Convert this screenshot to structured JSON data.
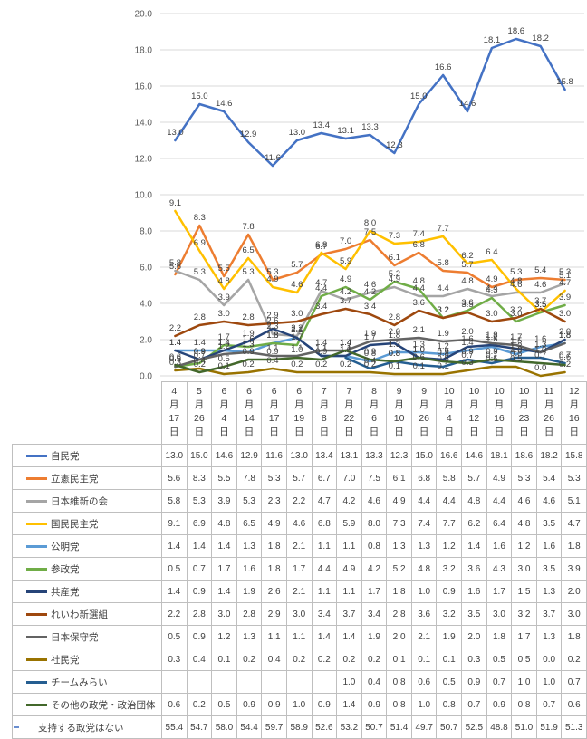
{
  "colors": {
    "gridline": "#d9d9d9",
    "table_border": "#bfbfbf",
    "axis_text": "#595959",
    "data_label_text": "#404040",
    "table_text": "#404040",
    "no_party_tick": "#698ed0"
  },
  "chart_data": {
    "type": "line",
    "title": "",
    "xlabel": "",
    "ylabel": "",
    "grid": true,
    "data_labels": true,
    "legend_position": "data-table-left-keys",
    "y_axis": {
      "min": 0.0,
      "max": 20.0,
      "step": 2.0,
      "tick_labels": [
        "20.0",
        "18.0",
        "16.0",
        "14.0",
        "12.0",
        "10.0",
        "8.0",
        "6.0",
        "4.0",
        "2.0",
        "0.0"
      ]
    },
    "categories": [
      "4月17日",
      "5月26日",
      "6月4日",
      "6月14日",
      "6月17日",
      "6月19日",
      "7月8日",
      "7月22日",
      "8月6日",
      "9月10日",
      "9月26日",
      "10月4日",
      "10月12日",
      "10月16日",
      "10月23日",
      "11月26日",
      "12月16日"
    ],
    "series": [
      {
        "name": "自民党",
        "color": "#4472c4",
        "plotted": true,
        "values": [
          13.0,
          15.0,
          14.6,
          12.9,
          11.6,
          13.0,
          13.4,
          13.1,
          13.3,
          12.3,
          15.0,
          16.6,
          14.6,
          18.1,
          18.6,
          18.2,
          15.8
        ]
      },
      {
        "name": "立憲民主党",
        "color": "#ed7d31",
        "plotted": true,
        "values": [
          5.6,
          8.3,
          5.5,
          7.8,
          5.3,
          5.7,
          6.7,
          7.0,
          7.5,
          6.1,
          6.8,
          5.8,
          5.7,
          4.9,
          5.3,
          5.4,
          5.3
        ]
      },
      {
        "name": "日本維新の会",
        "color": "#a5a5a5",
        "plotted": true,
        "values": [
          5.8,
          5.3,
          3.9,
          5.3,
          2.3,
          2.2,
          4.7,
          4.2,
          4.6,
          4.9,
          4.4,
          4.4,
          4.8,
          4.4,
          4.6,
          4.6,
          5.1
        ]
      },
      {
        "name": "国民民主党",
        "color": "#ffc000",
        "plotted": true,
        "values": [
          9.1,
          6.9,
          4.8,
          6.5,
          4.9,
          4.6,
          6.8,
          5.9,
          8.0,
          7.3,
          7.4,
          7.7,
          6.2,
          6.4,
          4.8,
          3.5,
          4.7
        ]
      },
      {
        "name": "公明党",
        "color": "#5b9bd5",
        "plotted": true,
        "values": [
          1.4,
          1.4,
          1.4,
          1.3,
          1.8,
          2.1,
          1.1,
          1.1,
          0.8,
          1.3,
          1.3,
          1.2,
          1.4,
          1.6,
          1.2,
          1.6,
          1.8
        ]
      },
      {
        "name": "参政党",
        "color": "#70ad47",
        "plotted": true,
        "values": [
          0.5,
          0.7,
          1.7,
          1.6,
          1.8,
          1.7,
          4.4,
          4.9,
          4.2,
          5.2,
          4.8,
          3.2,
          3.6,
          4.3,
          3.0,
          3.5,
          3.9
        ]
      },
      {
        "name": "共産党",
        "color": "#264478",
        "plotted": true,
        "values": [
          1.4,
          0.9,
          1.4,
          1.9,
          2.6,
          2.1,
          1.1,
          1.1,
          1.7,
          1.8,
          1.0,
          0.9,
          1.6,
          1.7,
          1.5,
          1.3,
          2.0
        ]
      },
      {
        "name": "れいわ新選組",
        "color": "#9e480e",
        "plotted": true,
        "values": [
          2.2,
          2.8,
          3.0,
          2.8,
          2.9,
          3.0,
          3.4,
          3.7,
          3.4,
          2.8,
          3.6,
          3.2,
          3.5,
          3.0,
          3.2,
          3.7,
          3.0
        ]
      },
      {
        "name": "日本保守党",
        "color": "#636363",
        "plotted": true,
        "values": [
          0.5,
          0.9,
          1.2,
          1.3,
          1.1,
          1.1,
          1.4,
          1.4,
          1.9,
          2.0,
          2.1,
          1.9,
          2.0,
          1.8,
          1.7,
          1.3,
          1.8
        ]
      },
      {
        "name": "社民党",
        "color": "#997300",
        "plotted": true,
        "values": [
          0.3,
          0.4,
          0.1,
          0.2,
          0.4,
          0.2,
          0.2,
          0.2,
          0.2,
          0.1,
          0.1,
          0.1,
          0.3,
          0.5,
          0.5,
          0.0,
          0.2
        ]
      },
      {
        "name": "チームみらい",
        "color": "#255e91",
        "plotted": true,
        "values": [
          null,
          null,
          null,
          null,
          null,
          null,
          null,
          1.0,
          0.4,
          0.8,
          0.6,
          0.5,
          0.9,
          0.7,
          1.0,
          1.0,
          0.7
        ]
      },
      {
        "name": "その他の政党・政治団体",
        "color": "#43682b",
        "plotted": true,
        "values": [
          0.6,
          0.2,
          0.5,
          0.9,
          0.9,
          1.0,
          0.9,
          1.4,
          0.9,
          0.8,
          1.0,
          0.8,
          0.7,
          0.9,
          0.8,
          0.7,
          0.6
        ]
      },
      {
        "name": "支持する政党はない",
        "color": "#698ed0",
        "plotted": false,
        "values": [
          55.4,
          54.7,
          58.0,
          54.4,
          59.7,
          58.9,
          52.6,
          53.2,
          50.7,
          51.4,
          49.7,
          50.7,
          52.5,
          48.8,
          51.0,
          51.9,
          51.3
        ]
      }
    ]
  }
}
